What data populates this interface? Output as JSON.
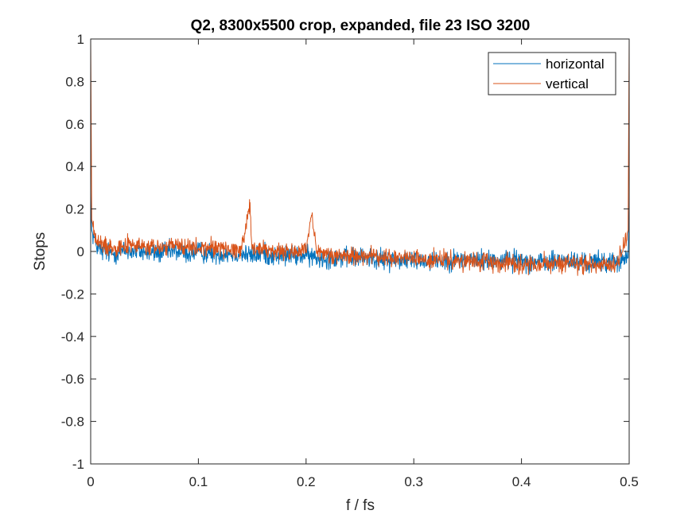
{
  "chart_data": {
    "type": "line",
    "title": "Q2, 8300x5500 crop, expanded, file 23 ISO 3200",
    "xlabel": "f / fs",
    "ylabel": "Stops",
    "xlim": [
      0,
      0.5
    ],
    "ylim": [
      -1,
      1
    ],
    "xticks": [
      0,
      0.1,
      0.2,
      0.3,
      0.4,
      0.5
    ],
    "xtick_labels": [
      "0",
      "0.1",
      "0.2",
      "0.3",
      "0.4",
      "0.5"
    ],
    "yticks": [
      -1,
      -0.8,
      -0.6,
      -0.4,
      -0.2,
      0,
      0.2,
      0.4,
      0.6,
      0.8,
      1
    ],
    "ytick_labels": [
      "-1",
      "-0.8",
      "-0.6",
      "-0.4",
      "-0.2",
      "0",
      "0.2",
      "0.4",
      "0.6",
      "0.8",
      "1"
    ],
    "grid": false,
    "legend_position": "top-right",
    "series": [
      {
        "name": "horizontal",
        "color": "#0072BD",
        "x": [
          0,
          0.001,
          0.005,
          0.01,
          0.02,
          0.03,
          0.04,
          0.05,
          0.06,
          0.07,
          0.08,
          0.09,
          0.1,
          0.11,
          0.12,
          0.13,
          0.14,
          0.15,
          0.16,
          0.17,
          0.18,
          0.19,
          0.2,
          0.21,
          0.22,
          0.23,
          0.24,
          0.25,
          0.26,
          0.27,
          0.28,
          0.29,
          0.3,
          0.31,
          0.32,
          0.33,
          0.34,
          0.35,
          0.36,
          0.37,
          0.38,
          0.39,
          0.4,
          0.41,
          0.42,
          0.43,
          0.44,
          0.45,
          0.46,
          0.47,
          0.48,
          0.49,
          0.499,
          0.5
        ],
        "y": [
          0.28,
          0.1,
          0.03,
          0.0,
          -0.01,
          0.0,
          0.0,
          0.0,
          -0.01,
          0.0,
          0.0,
          -0.01,
          0.0,
          -0.01,
          -0.01,
          -0.01,
          -0.01,
          -0.02,
          -0.01,
          -0.02,
          -0.02,
          -0.02,
          -0.02,
          -0.03,
          -0.03,
          -0.03,
          -0.03,
          -0.03,
          -0.03,
          -0.04,
          -0.04,
          -0.04,
          -0.04,
          -0.04,
          -0.04,
          -0.04,
          -0.04,
          -0.04,
          -0.04,
          -0.04,
          -0.04,
          -0.04,
          -0.04,
          -0.05,
          -0.05,
          -0.05,
          -0.04,
          -0.05,
          -0.05,
          -0.05,
          -0.05,
          -0.05,
          -0.03,
          0.28
        ]
      },
      {
        "name": "vertical",
        "color": "#D95319",
        "x": [
          0,
          0.001,
          0.005,
          0.01,
          0.02,
          0.03,
          0.04,
          0.05,
          0.06,
          0.07,
          0.08,
          0.09,
          0.1,
          0.11,
          0.12,
          0.13,
          0.14,
          0.148,
          0.15,
          0.16,
          0.17,
          0.18,
          0.19,
          0.2,
          0.205,
          0.21,
          0.22,
          0.23,
          0.24,
          0.25,
          0.26,
          0.27,
          0.28,
          0.29,
          0.3,
          0.31,
          0.32,
          0.33,
          0.34,
          0.35,
          0.36,
          0.37,
          0.38,
          0.39,
          0.4,
          0.41,
          0.42,
          0.43,
          0.44,
          0.45,
          0.46,
          0.47,
          0.48,
          0.49,
          0.499,
          0.5
        ],
        "y": [
          1.0,
          0.15,
          0.05,
          0.03,
          0.02,
          0.03,
          0.03,
          0.02,
          0.02,
          0.02,
          0.03,
          0.02,
          0.01,
          0.02,
          0.02,
          0.01,
          0.01,
          0.23,
          0.01,
          0.01,
          0.0,
          0.0,
          0.0,
          0.0,
          0.17,
          -0.01,
          -0.01,
          -0.02,
          -0.02,
          -0.02,
          -0.02,
          -0.03,
          -0.03,
          -0.03,
          -0.03,
          -0.04,
          -0.04,
          -0.04,
          -0.05,
          -0.05,
          -0.05,
          -0.05,
          -0.05,
          -0.05,
          -0.06,
          -0.06,
          -0.06,
          -0.06,
          -0.06,
          -0.06,
          -0.06,
          -0.06,
          -0.06,
          -0.06,
          0.1,
          1.0
        ]
      }
    ]
  }
}
